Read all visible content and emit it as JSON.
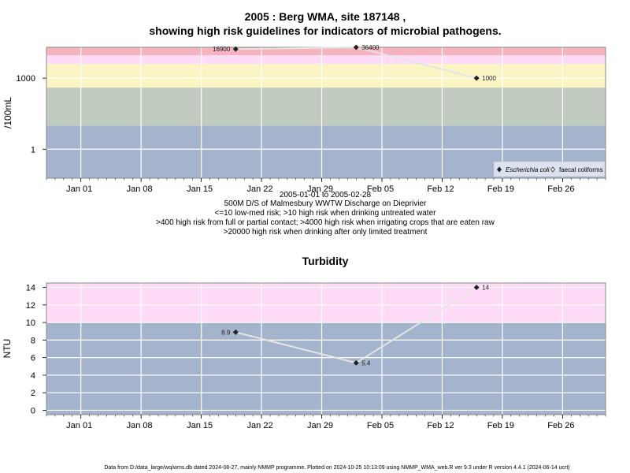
{
  "chart_data": [
    {
      "type": "line",
      "title_line1": "2005 : Berg WMA, site 187148 ,",
      "title_line2": "showing high risk guidelines for indicators of microbial pathogens.",
      "ylabel": "/100mL",
      "yscale": "log10",
      "ylim": [
        0.06,
        20000
      ],
      "xlim": [
        "2004-12-28",
        "2005-03-03"
      ],
      "x_ticks": [
        {
          "date": "2005-01-01",
          "label": "Jan 01"
        },
        {
          "date": "2005-01-08",
          "label": "Jan 08"
        },
        {
          "date": "2005-01-15",
          "label": "Jan 15"
        },
        {
          "date": "2005-01-22",
          "label": "Jan 22"
        },
        {
          "date": "2005-01-29",
          "label": "Jan 29"
        },
        {
          "date": "2005-02-05",
          "label": "Feb 05"
        },
        {
          "date": "2005-02-12",
          "label": "Feb 12"
        },
        {
          "date": "2005-02-19",
          "label": "Feb 19"
        },
        {
          "date": "2005-02-26",
          "label": "Feb 26"
        }
      ],
      "y_ticks": [
        {
          "value": 1,
          "label": "1"
        },
        {
          "value": 1000,
          "label": "1000"
        }
      ],
      "grid": true,
      "bands": [
        {
          "from": 0.06,
          "to": 10,
          "color": "#a3b4cc"
        },
        {
          "from": 10,
          "to": 400,
          "color": "#c2cbc0"
        },
        {
          "from": 400,
          "to": 4000,
          "color": "#fbf4c3"
        },
        {
          "from": 4000,
          "to": 20000,
          "color": "#fedcf7"
        },
        {
          "from": 20000,
          "to": 20000,
          "color": "#f5b3bf"
        }
      ],
      "series": [
        {
          "name": "Escherichia coli",
          "marker": "filled-diamond",
          "points": [
            {
              "x": "2005-01-19",
              "y": 16900,
              "label": "16900"
            },
            {
              "x": "2005-02-02",
              "y": 36400,
              "label": "36400"
            },
            {
              "x": "2005-02-16",
              "y": 1000,
              "label": "1000"
            }
          ]
        },
        {
          "name": "faecal coliforms",
          "marker": "open-diamond",
          "points": []
        }
      ],
      "legend": "bottom-right",
      "notes": [
        "2005-01-01 to 2005-02-28",
        "500M D/S of Malmesbury WWTW Discharge on Dieprivier",
        "<=10 low-med risk; >10 high risk when drinking untreated water",
        ">400 high risk from full or partial contact; >4000 high risk when irrigating crops that are eaten raw",
        ">20000 high risk when drinking after only limited treatment"
      ]
    },
    {
      "type": "line",
      "title": "Turbidity",
      "ylabel": "NTU",
      "yscale": "linear",
      "ylim": [
        -0.5,
        14.5
      ],
      "xlim": [
        "2004-12-28",
        "2005-03-03"
      ],
      "y_ticks": [
        0,
        2,
        4,
        6,
        8,
        10,
        12,
        14
      ],
      "grid": true,
      "bands": [
        {
          "from": -0.5,
          "to": 10,
          "color": "#a3b4cc"
        },
        {
          "from": 10,
          "to": 14.5,
          "color": "#fedcf7"
        }
      ],
      "series": [
        {
          "marker": "filled-diamond",
          "points": [
            {
              "x": "2005-01-19",
              "y": 8.9,
              "label": "8.9"
            },
            {
              "x": "2005-02-02",
              "y": 5.4,
              "label": "5.4"
            },
            {
              "x": "2005-02-16",
              "y": 14,
              "label": "14"
            }
          ]
        }
      ]
    }
  ],
  "footer": "Data from D:/data_large/wq/wms.db dated 2024-08-27, mainly NMMP programme. Plotted on 2024-10-25 10:13:09 using NMMP_WMA_web.R ver 9.3 under R version 4.4.1 (2024-06-14 ucrt)"
}
